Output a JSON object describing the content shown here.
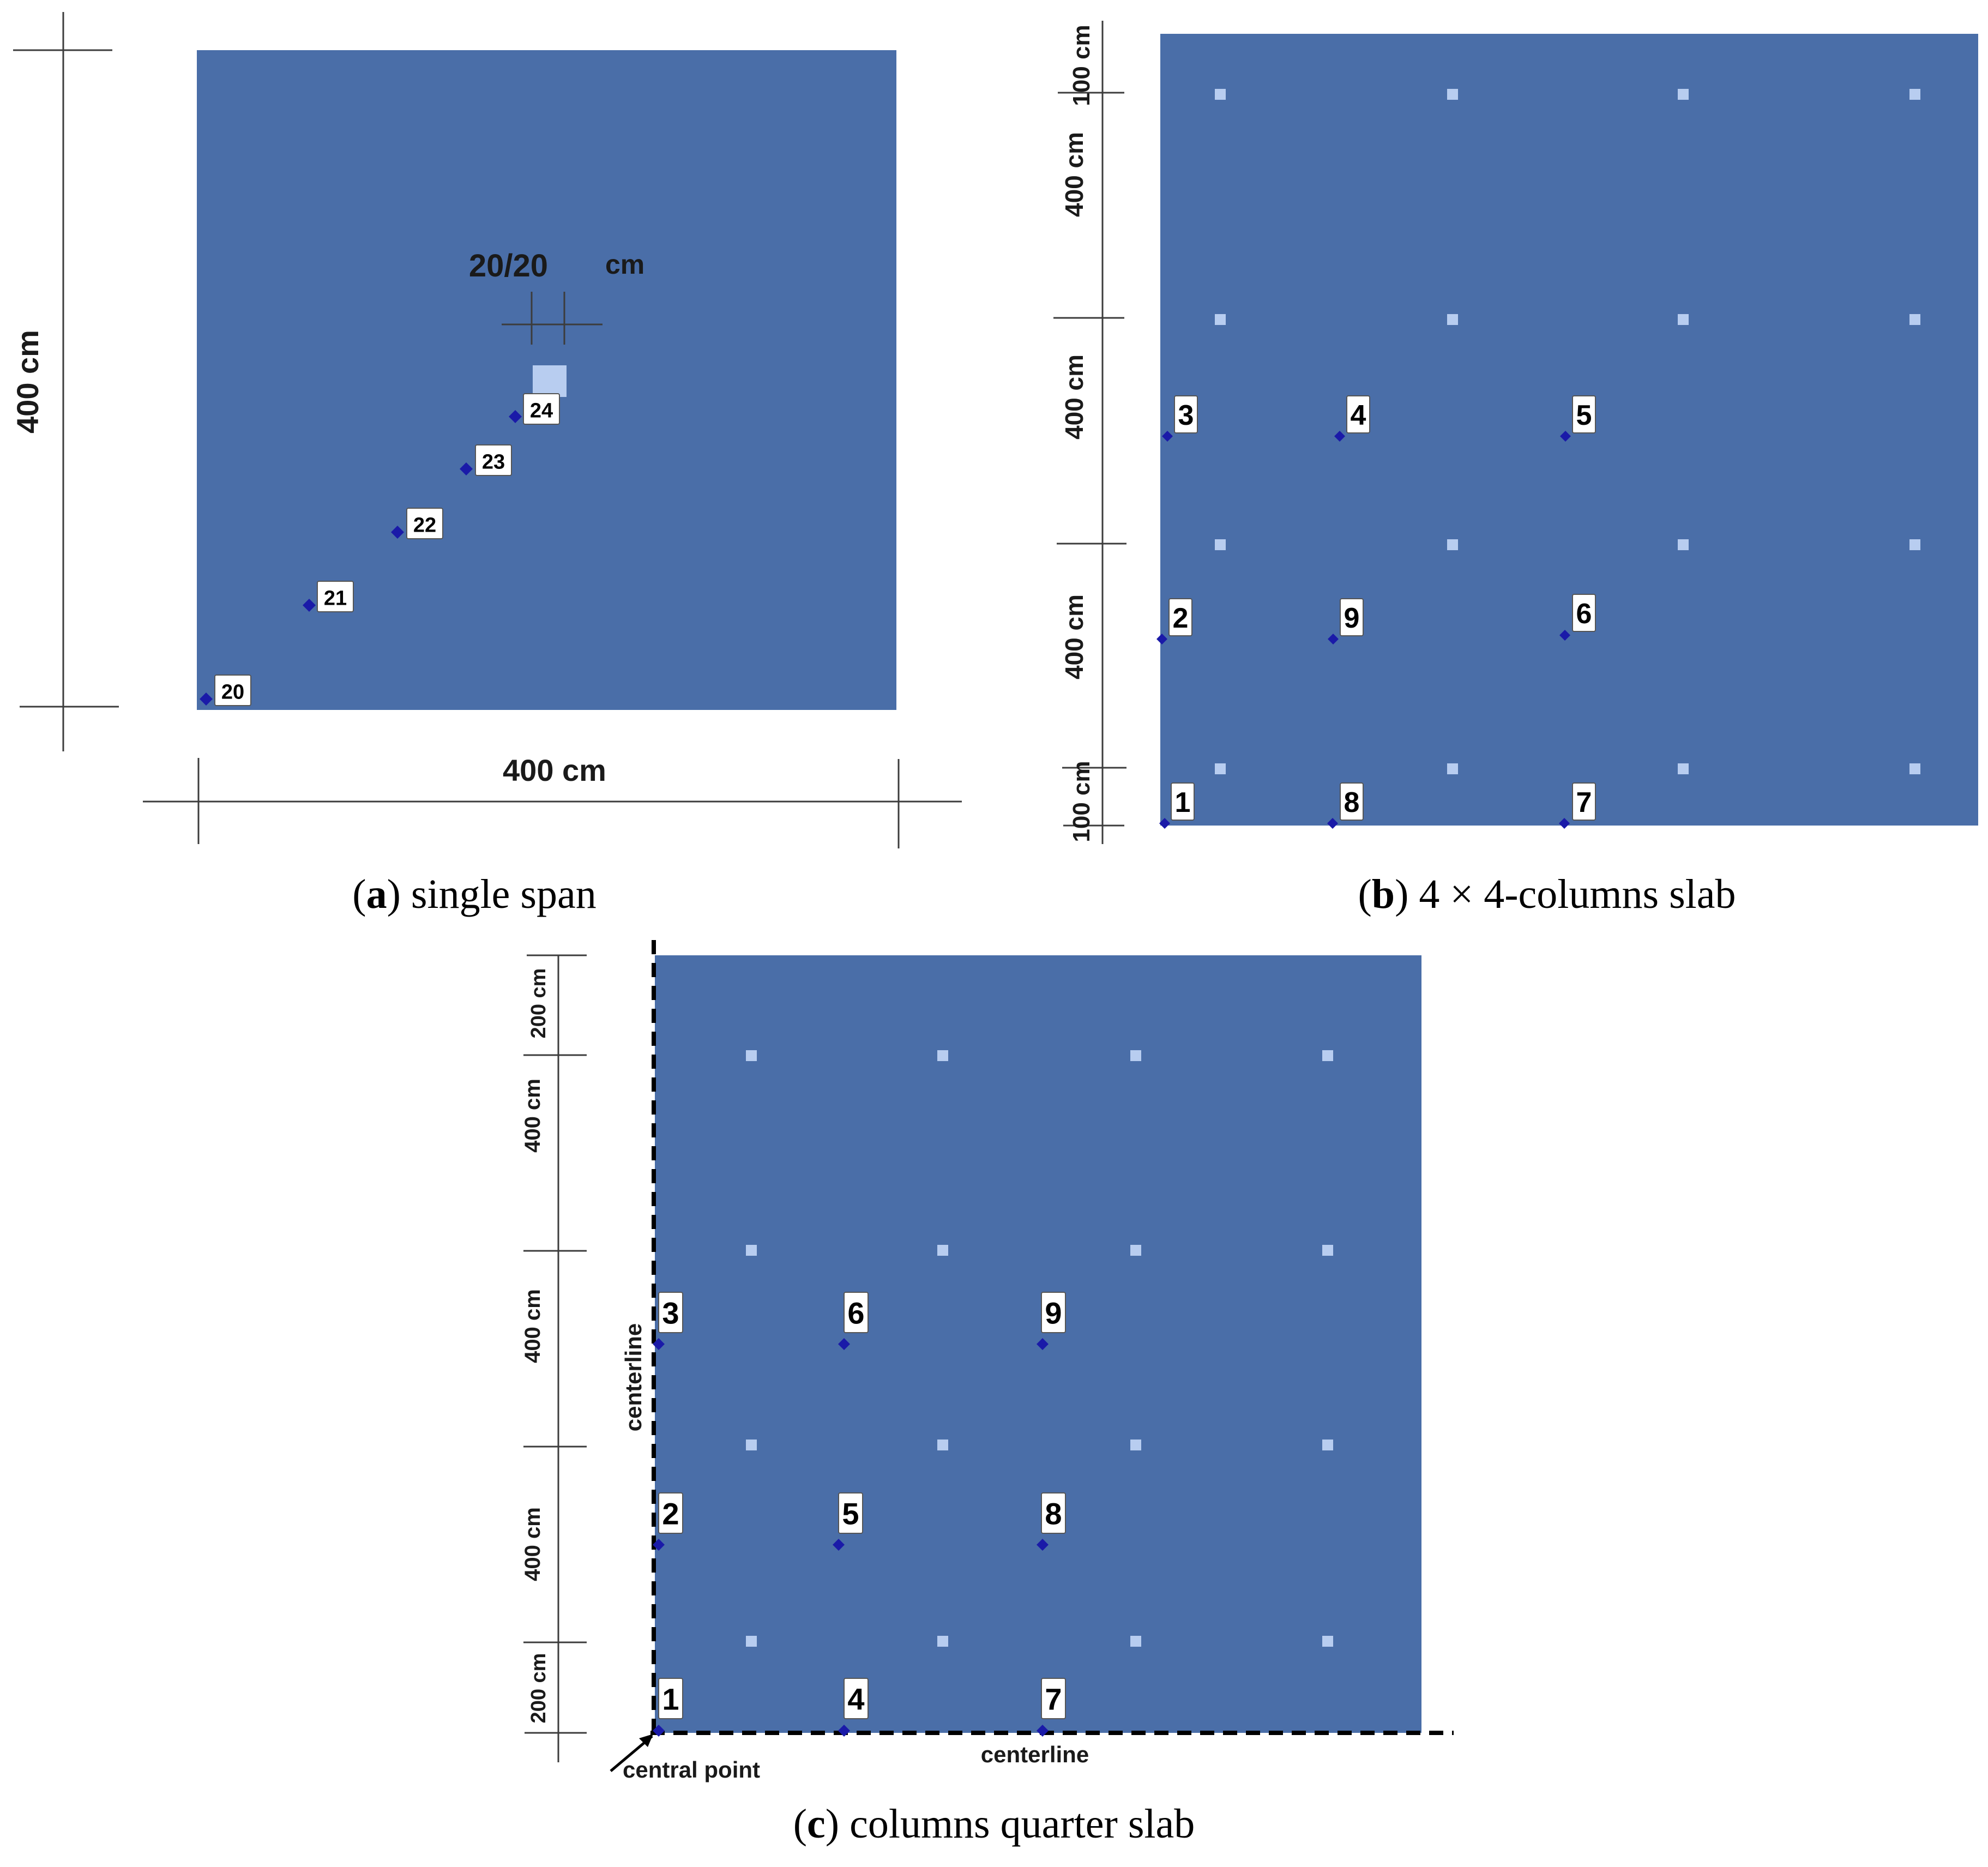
{
  "colors": {
    "slab": "#4a6ea8",
    "column": "#b8cdf0",
    "marker": "#1a1aa8",
    "dimension_line": "#3c3c3c"
  },
  "panel_a": {
    "caption_letter": "a",
    "caption_text": "single span",
    "dim_height": "400  cm",
    "dim_width": "400 cm",
    "column_size": "20/20",
    "column_size_unit": "cm",
    "points": [
      "20",
      "21",
      "22",
      "23",
      "24"
    ]
  },
  "panel_b": {
    "caption_letter": "b",
    "caption_text": "4 × 4-columns slab",
    "dims": [
      "100 cm",
      "400  cm",
      "400 cm",
      "400  cm",
      "100 cm"
    ],
    "points": [
      "1",
      "2",
      "3",
      "4",
      "5",
      "6",
      "7",
      "8",
      "9"
    ]
  },
  "panel_c": {
    "caption_letter": "c",
    "caption_text": "columns quarter slab",
    "dims": [
      "200 cm",
      "400  cm",
      "400 cm",
      "400 cm",
      "200 cm"
    ],
    "centerline_vertical": "centerline",
    "centerline_horizontal": "centerline",
    "central_point": "central point",
    "points": [
      "1",
      "2",
      "3",
      "4",
      "5",
      "6",
      "7",
      "8",
      "9"
    ]
  }
}
